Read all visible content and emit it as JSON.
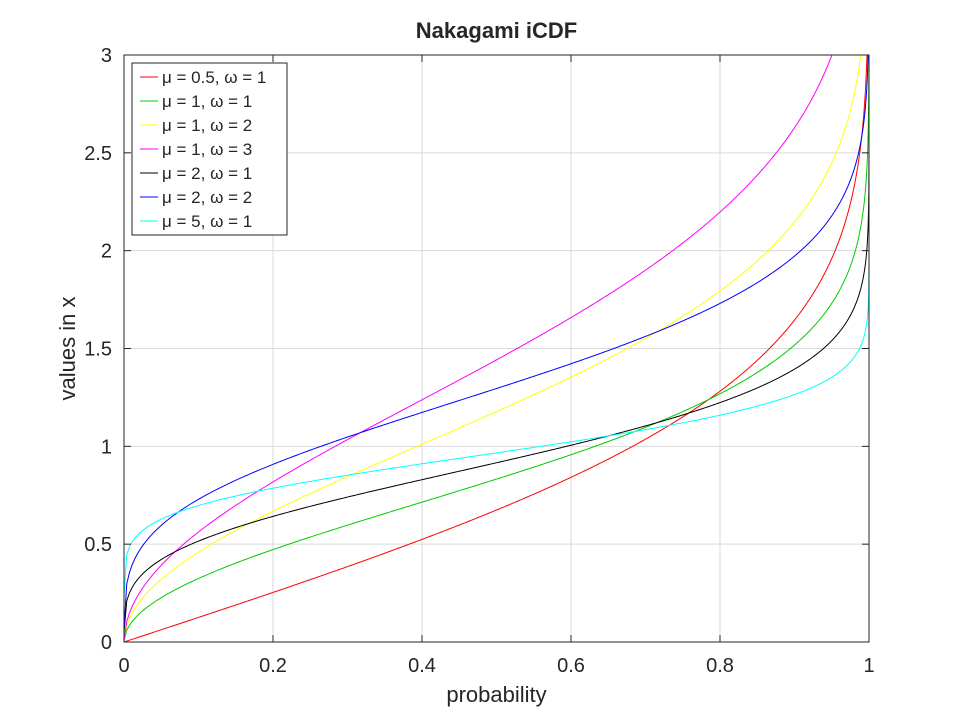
{
  "chart_data": {
    "type": "line",
    "title": "Nakagami iCDF",
    "xlabel": "probability",
    "ylabel": "values in x",
    "xlim": [
      0,
      1
    ],
    "ylim": [
      0,
      3
    ],
    "xticks": [
      "0",
      "0.2",
      "0.4",
      "0.6",
      "0.8",
      "1"
    ],
    "yticks": [
      "0",
      "0.5",
      "1",
      "1.5",
      "2",
      "2.5",
      "3"
    ],
    "grid": true,
    "legend_position": "top-left",
    "series": [
      {
        "name": "μ = 0.5, ω = 1",
        "color": "#ff0000",
        "mu": 0.5,
        "omega": 1,
        "x": [
          0,
          0.1,
          0.2,
          0.3,
          0.4,
          0.5,
          0.6,
          0.7,
          0.8,
          0.9,
          0.95,
          0.99
        ],
        "y": [
          0,
          0.13,
          0.25,
          0.39,
          0.52,
          0.67,
          0.84,
          1.04,
          1.28,
          1.64,
          1.96,
          2.58
        ]
      },
      {
        "name": "μ = 1, ω = 1",
        "color": "#00cc00",
        "mu": 1,
        "omega": 1,
        "x": [
          0,
          0.1,
          0.2,
          0.3,
          0.4,
          0.5,
          0.6,
          0.7,
          0.8,
          0.9,
          0.95,
          0.99
        ],
        "y": [
          0,
          0.32,
          0.47,
          0.6,
          0.71,
          0.83,
          0.96,
          1.1,
          1.27,
          1.52,
          1.73,
          2.15
        ]
      },
      {
        "name": "μ = 1, ω = 2",
        "color": "#ffff00",
        "mu": 1,
        "omega": 2,
        "x": [
          0,
          0.1,
          0.2,
          0.3,
          0.4,
          0.5,
          0.6,
          0.7,
          0.8,
          0.9,
          0.95,
          0.99
        ],
        "y": [
          0,
          0.46,
          0.67,
          0.84,
          1.01,
          1.18,
          1.35,
          1.55,
          1.79,
          2.15,
          2.45,
          3.03
        ]
      },
      {
        "name": "μ = 1, ω = 3",
        "color": "#ff00ff",
        "mu": 1,
        "omega": 3,
        "x": [
          0,
          0.1,
          0.2,
          0.3,
          0.4,
          0.5,
          0.6,
          0.7,
          0.8,
          0.9,
          0.95
        ],
        "y": [
          0,
          0.56,
          0.82,
          1.03,
          1.24,
          1.44,
          1.65,
          1.9,
          2.2,
          2.63,
          3.0
        ]
      },
      {
        "name": "μ = 2, ω = 1",
        "color": "#000000",
        "mu": 2,
        "omega": 1,
        "x": [
          0,
          0.1,
          0.2,
          0.3,
          0.4,
          0.5,
          0.6,
          0.7,
          0.8,
          0.9,
          0.95,
          0.99
        ],
        "y": [
          0,
          0.52,
          0.65,
          0.74,
          0.83,
          0.91,
          1.0,
          1.1,
          1.22,
          1.39,
          1.54,
          1.82
        ]
      },
      {
        "name": "μ = 2, ω = 2",
        "color": "#0000ff",
        "mu": 2,
        "omega": 2,
        "x": [
          0,
          0.1,
          0.2,
          0.3,
          0.4,
          0.5,
          0.6,
          0.7,
          0.8,
          0.9,
          0.95,
          0.99
        ],
        "y": [
          0,
          0.74,
          0.91,
          1.05,
          1.17,
          1.29,
          1.41,
          1.55,
          1.72,
          1.97,
          2.18,
          2.57
        ]
      },
      {
        "name": "μ = 5, ω = 1",
        "color": "#00ffff",
        "mu": 5,
        "omega": 1,
        "x": [
          0,
          0.1,
          0.2,
          0.3,
          0.4,
          0.5,
          0.6,
          0.7,
          0.8,
          0.9,
          0.95,
          0.99
        ],
        "y": [
          0,
          0.73,
          0.8,
          0.86,
          0.91,
          0.97,
          1.02,
          1.08,
          1.15,
          1.26,
          1.35,
          1.52
        ]
      }
    ]
  }
}
